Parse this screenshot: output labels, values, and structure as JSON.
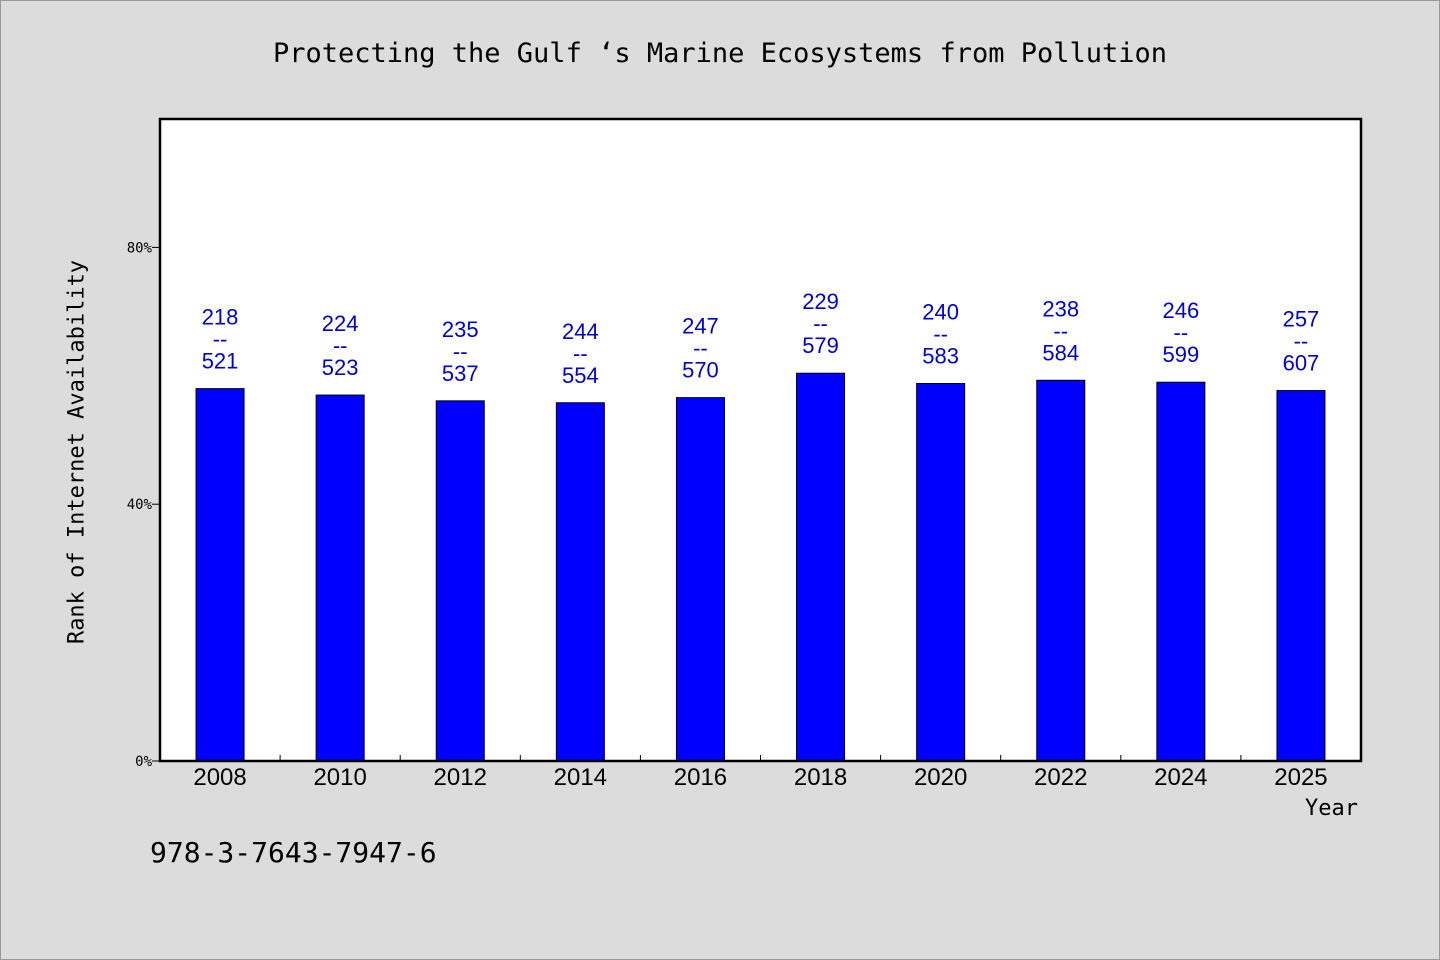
{
  "title": "Protecting the Gulf ‘s Marine Ecosystems from Pollution",
  "footer_text": "978-3-7643-7947-6",
  "colors": {
    "bar": "#0000ff",
    "label": "#0000cc",
    "background": "#dcdcdc",
    "plot_background": "#ffffff"
  },
  "chart_data": {
    "type": "bar",
    "xlabel": "Year",
    "ylabel": "Rank of Internet Availability",
    "ylim": [
      0,
      100
    ],
    "yticks": [
      0,
      40,
      80
    ],
    "ytick_labels": [
      "0%",
      "40%",
      "80%"
    ],
    "grid": false,
    "categories": [
      "2008",
      "2010",
      "2012",
      "2014",
      "2016",
      "2018",
      "2020",
      "2022",
      "2024",
      "2025"
    ],
    "values": [
      58.0,
      57.0,
      56.1,
      55.8,
      56.6,
      60.4,
      58.8,
      59.3,
      59.0,
      57.7
    ],
    "data_labels": [
      [
        "218",
        "--",
        "521"
      ],
      [
        "224",
        "--",
        "523"
      ],
      [
        "235",
        "--",
        "537"
      ],
      [
        "244",
        "--",
        "554"
      ],
      [
        "247",
        "--",
        "570"
      ],
      [
        "229",
        "--",
        "579"
      ],
      [
        "240",
        "--",
        "583"
      ],
      [
        "238",
        "--",
        "584"
      ],
      [
        "246",
        "--",
        "599"
      ],
      [
        "257",
        "--",
        "607"
      ]
    ]
  }
}
